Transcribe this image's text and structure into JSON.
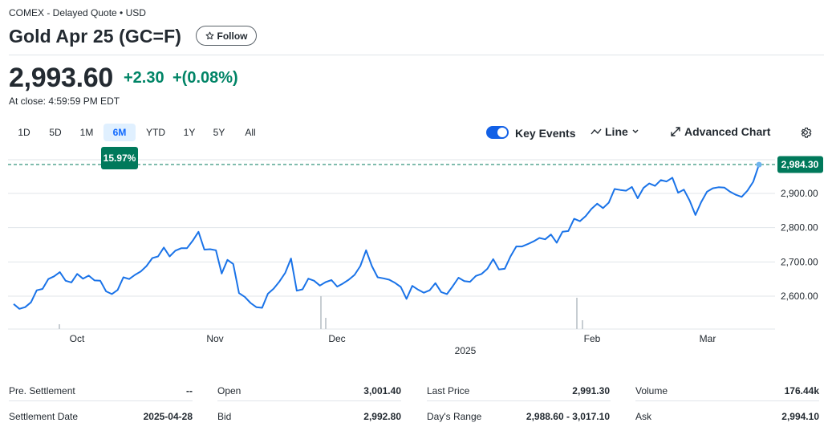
{
  "header": {
    "exchange": "COMEX - Delayed Quote • USD",
    "title": "Gold Apr 25 (GC=F)",
    "follow_label": "Follow"
  },
  "quote": {
    "price": "2,993.60",
    "change": "+2.30",
    "change_pct": "+(0.08%)",
    "close_time": "At close: 4:59:59 PM EDT",
    "positive_color": "#008466"
  },
  "range_tabs": [
    "1D",
    "5D",
    "1M",
    "6M",
    "YTD",
    "1Y",
    "5Y",
    "All"
  ],
  "active_range": "6M",
  "range_change_badge": "15.97%",
  "controls": {
    "key_events_label": "Key Events",
    "key_events_on": true,
    "chart_type_label": "Line",
    "advanced_chart_label": "Advanced Chart"
  },
  "chart_data": {
    "type": "line",
    "title": "",
    "xlabel": "",
    "ylabel": "",
    "x_ticks": [
      "Oct",
      "Nov",
      "Dec",
      "2025",
      "Feb",
      "Mar"
    ],
    "y_ticks": [
      "2,600.00",
      "2,700.00",
      "2,800.00",
      "2,900.00"
    ],
    "y_tick_values": [
      2600,
      2700,
      2800,
      2900
    ],
    "ylim": [
      2530,
      2990
    ],
    "last_price_label": "2,984.30",
    "last_price": 2984.3,
    "grid": true,
    "line_color": "#1a73e8",
    "series": [
      {
        "values": [
          2577,
          2563,
          2568,
          2582,
          2617,
          2621,
          2650,
          2658,
          2670,
          2645,
          2640,
          2665,
          2651,
          2660,
          2646,
          2645,
          2614,
          2606,
          2618,
          2655,
          2650,
          2662,
          2672,
          2688,
          2711,
          2716,
          2742,
          2716,
          2733,
          2740,
          2740,
          2762,
          2788,
          2736,
          2737,
          2734,
          2666,
          2706,
          2694,
          2609,
          2598,
          2580,
          2568,
          2566,
          2607,
          2622,
          2643,
          2668,
          2710,
          2616,
          2620,
          2651,
          2645,
          2631,
          2641,
          2647,
          2628,
          2637,
          2648,
          2662,
          2688,
          2734,
          2688,
          2655,
          2652,
          2648,
          2639,
          2627,
          2592,
          2630,
          2619,
          2610,
          2617,
          2638,
          2612,
          2606,
          2629,
          2654,
          2644,
          2642,
          2659,
          2665,
          2680,
          2708,
          2678,
          2680,
          2716,
          2745,
          2745,
          2752,
          2760,
          2770,
          2766,
          2780,
          2756,
          2788,
          2790,
          2826,
          2819,
          2834,
          2855,
          2870,
          2857,
          2873,
          2913,
          2910,
          2908,
          2919,
          2886,
          2916,
          2929,
          2922,
          2939,
          2935,
          2946,
          2902,
          2911,
          2879,
          2837,
          2875,
          2905,
          2915,
          2918,
          2917,
          2905,
          2896,
          2890,
          2908,
          2934,
          2984
        ]
      }
    ]
  },
  "stats": [
    [
      {
        "label": "Pre. Settlement",
        "value": "--"
      },
      {
        "label": "Open",
        "value": "3,001.40"
      },
      {
        "label": "Last Price",
        "value": "2,991.30"
      },
      {
        "label": "Volume",
        "value": "176.44k"
      }
    ],
    [
      {
        "label": "Settlement Date",
        "value": "2025-04-28"
      },
      {
        "label": "Bid",
        "value": "2,992.80"
      },
      {
        "label": "Day's Range",
        "value": "2,988.60 - 3,017.10"
      },
      {
        "label": "Ask",
        "value": "2,994.10"
      }
    ]
  ]
}
